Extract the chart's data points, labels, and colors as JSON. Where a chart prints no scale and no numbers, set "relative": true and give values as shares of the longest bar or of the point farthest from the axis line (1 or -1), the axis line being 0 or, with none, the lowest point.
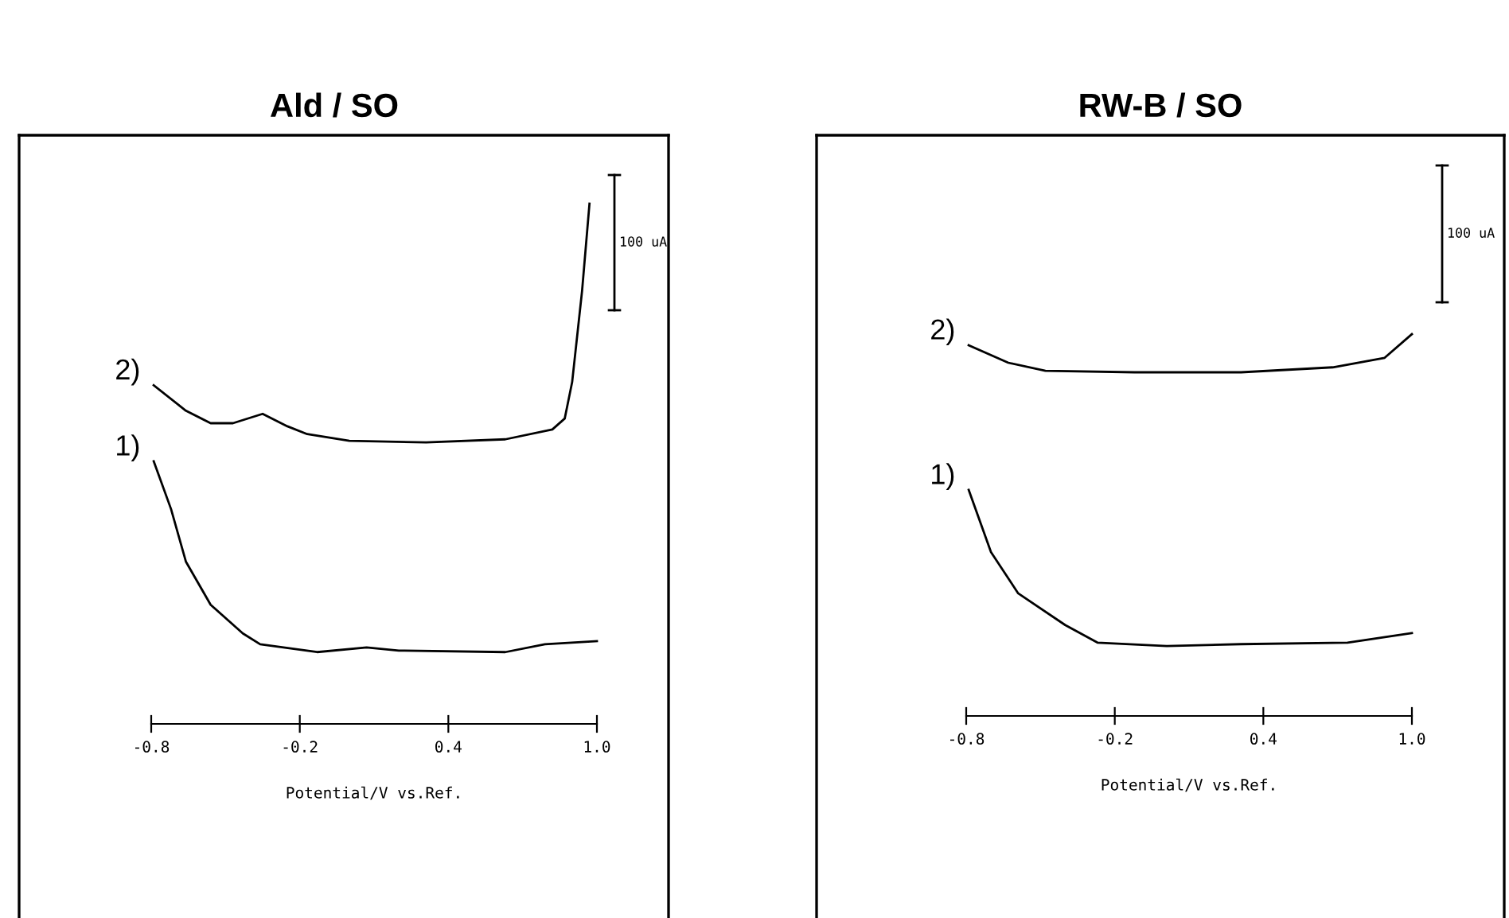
{
  "chart_data": [
    {
      "type": "line",
      "title": "Ald / SO",
      "xlabel": "Potential/V vs.Ref.",
      "relative": true,
      "xlim": [
        -0.8,
        1.0
      ],
      "xticks": [
        -0.8,
        -0.2,
        0.4,
        {
          "value": 1.0,
          "label": "1.0"
        }
      ],
      "grid": false,
      "legend": false,
      "marker": "none",
      "line_style": "solid",
      "annotations": [
        "100 uA"
      ],
      "series": [
        {
          "name": "2)",
          "color": "#000000",
          "x": [
            -0.79,
            -0.66,
            -0.56,
            -0.47,
            -0.35,
            -0.25,
            -0.17,
            0.0,
            0.31,
            0.63,
            0.82,
            0.87,
            0.9,
            0.94,
            0.97
          ],
          "values": [
            0.651,
            0.602,
            0.578,
            0.578,
            0.596,
            0.572,
            0.557,
            0.544,
            0.541,
            0.547,
            0.566,
            0.587,
            0.657,
            0.832,
            1.0
          ]
        },
        {
          "name": "1)",
          "color": "#000000",
          "x": [
            -0.79,
            -0.72,
            -0.66,
            -0.56,
            -0.43,
            -0.36,
            -0.13,
            0.07,
            0.2,
            0.63,
            0.79,
            1.0
          ],
          "values": [
            0.505,
            0.413,
            0.312,
            0.229,
            0.174,
            0.153,
            0.138,
            0.147,
            0.141,
            0.138,
            0.153,
            0.159
          ]
        }
      ]
    },
    {
      "type": "line",
      "title": "RW-B / SO",
      "xlabel": "Potential/V vs.Ref.",
      "relative": true,
      "xlim": [
        -0.8,
        1.0
      ],
      "xticks": [
        -0.8,
        -0.2,
        0.4,
        {
          "value": 1.0,
          "label": "1.0"
        }
      ],
      "grid": false,
      "legend": false,
      "marker": "none",
      "line_style": "solid",
      "annotations": [
        "100 uA"
      ],
      "series": [
        {
          "name": "2)",
          "color": "#000000",
          "x": [
            -0.79,
            -0.63,
            -0.48,
            -0.12,
            0.31,
            0.68,
            0.89,
            1.0
          ],
          "values": [
            0.971,
            0.925,
            0.904,
            0.9,
            0.9,
            0.913,
            0.938,
            1.0
          ]
        },
        {
          "name": "1)",
          "color": "#000000",
          "x": [
            -0.79,
            -0.7,
            -0.59,
            -0.4,
            -0.27,
            0.01,
            0.31,
            0.74,
            1.0
          ],
          "values": [
            0.592,
            0.429,
            0.321,
            0.238,
            0.192,
            0.183,
            0.188,
            0.192,
            0.217
          ]
        }
      ]
    }
  ]
}
